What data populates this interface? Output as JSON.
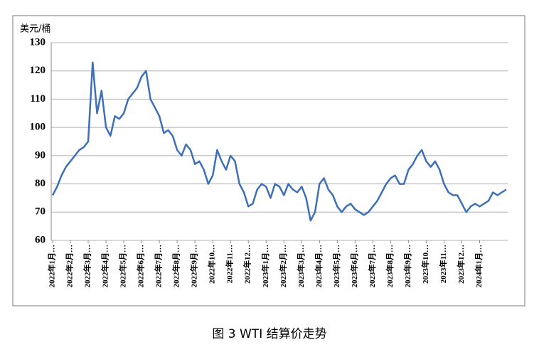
{
  "chart_data": {
    "type": "line",
    "title": "图 3  WTI 结算价走势",
    "y_label": "美元/桶",
    "categories": [
      "2022年1月…",
      null,
      null,
      null,
      "2022年2月…",
      null,
      null,
      null,
      "2022年3月…",
      null,
      null,
      null,
      "2022年4月…",
      null,
      null,
      null,
      "2022年5月…",
      null,
      null,
      null,
      "2022年6月…",
      null,
      null,
      null,
      "2022年7月…",
      null,
      null,
      null,
      "2022年8月…",
      null,
      null,
      null,
      "2022年9月…",
      null,
      null,
      null,
      "2022年10…",
      null,
      null,
      null,
      "2022年11…",
      null,
      null,
      null,
      "2022年12…",
      null,
      null,
      null,
      "2023年1月…",
      null,
      null,
      null,
      "2023年2月…",
      null,
      null,
      null,
      "2023年3月…",
      null,
      null,
      null,
      "2023年4月…",
      null,
      null,
      null,
      "2023年5月…",
      null,
      null,
      null,
      "2023年6月…",
      null,
      null,
      null,
      "2023年7月…",
      null,
      null,
      null,
      "2023年8月…",
      null,
      null,
      null,
      "2023年9月…",
      null,
      null,
      null,
      "2023年10…",
      null,
      null,
      null,
      "2023年11…",
      null,
      null,
      null,
      "2023年12…",
      null,
      null,
      null,
      "2024年1月…",
      null,
      null,
      null,
      null,
      null,
      null
    ],
    "values": [
      76,
      79,
      83,
      86,
      88,
      90,
      92,
      93,
      95,
      123,
      105,
      113,
      100,
      97,
      104,
      103,
      105,
      110,
      112,
      114,
      118,
      120,
      110,
      107,
      104,
      98,
      99,
      97,
      92,
      90,
      94,
      92,
      87,
      88,
      85,
      80,
      83,
      92,
      88,
      85,
      90,
      88,
      80,
      77,
      72,
      73,
      78,
      80,
      79,
      75,
      80,
      79,
      76,
      80,
      78,
      77,
      79,
      75,
      67,
      70,
      80,
      82,
      78,
      76,
      72,
      70,
      72,
      73,
      71,
      70,
      69,
      70,
      72,
      74,
      77,
      80,
      82,
      83,
      80,
      80,
      85,
      87,
      90,
      92,
      88,
      86,
      88,
      85,
      80,
      77,
      76,
      76,
      73,
      70,
      72,
      73,
      72,
      73,
      74,
      77,
      76,
      77,
      78
    ],
    "color": "#3f6fb7",
    "ylim": [
      60,
      130
    ],
    "yticks": [
      60,
      70,
      80,
      90,
      100,
      110,
      120,
      130
    ],
    "grid": true
  }
}
